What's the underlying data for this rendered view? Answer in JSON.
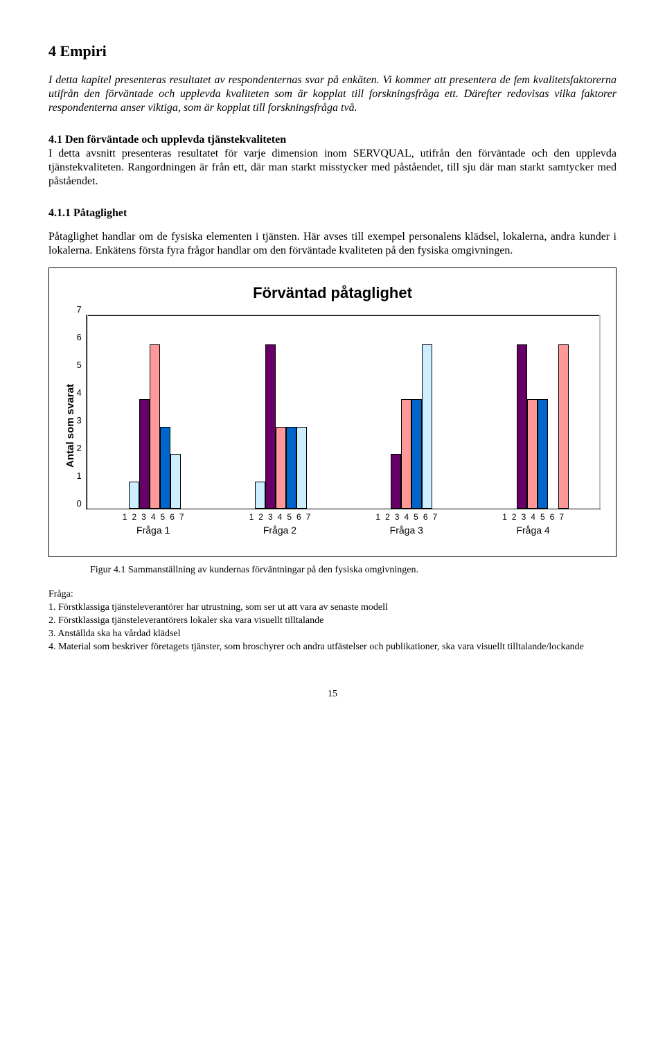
{
  "h1": "4 Empiri",
  "intro": "I detta kapitel presenteras resultatet av respondenternas svar på enkäten. Vi kommer att presentera de fem kvalitetsfaktorerna utifrån den förväntade och upplevda kvaliteten som är kopplat till forskningsfråga ett. Därefter redovisas vilka faktorer respondenterna anser viktiga, som är kopplat till forskningsfråga två.",
  "sec41_title": "4.1 Den förväntade och upplevda tjänstekvaliteten",
  "sec41_body": "I detta avsnitt presenteras resultatet för varje dimension inom SERVQUAL, utifrån den förväntade och den upplevda tjänstekvaliteten. Rangordningen är från ett, där man starkt misstycker med påståendet, till sju där man starkt samtycker med påståendet.",
  "sec411_title": "4.1.1 Påtaglighet",
  "sec411_body": "Påtaglighet handlar om de fysiska elementen i tjänsten. Här avses till exempel personalens klädsel, lokalerna, andra kunder i lokalerna. Enkätens första fyra frågor handlar om den förväntade kvaliteten på den fysiska omgivningen.",
  "chart": {
    "title": "Förväntad påtaglighet",
    "ylabel": "Antal som svarat",
    "ymax": 7,
    "yticks": [
      0,
      1,
      2,
      3,
      4,
      5,
      6,
      7
    ],
    "bar_colors": [
      "#ffffcc",
      "#cceeff",
      "#660066",
      "#ff9999",
      "#0066cc",
      "#cceeff",
      "#ff9999"
    ],
    "groups": [
      {
        "label": "Fråga 1",
        "xnums": [
          "1",
          "2",
          "3",
          "4",
          "5",
          "6",
          "7"
        ],
        "values": [
          0,
          1,
          4,
          6,
          3,
          2,
          0
        ]
      },
      {
        "label": "Fråga 2",
        "xnums": [
          "1",
          "2",
          "3",
          "4",
          "5",
          "6",
          "7"
        ],
        "values": [
          0,
          1,
          6,
          3,
          3,
          3,
          0
        ]
      },
      {
        "label": "Fråga 3",
        "xnums": [
          "1",
          "2",
          "3",
          "4",
          "5",
          "6",
          "7"
        ],
        "values": [
          0,
          0,
          2,
          4,
          4,
          6,
          0
        ]
      },
      {
        "label": "Fråga 4",
        "xnums": [
          "1",
          "2",
          "3",
          "4",
          "5",
          "6",
          "7"
        ],
        "values": [
          0,
          0,
          6,
          4,
          4,
          0,
          6
        ]
      }
    ],
    "plot_bg": "#c0c0c0",
    "inner_bg": "#ffffff",
    "grid_color": "#000000"
  },
  "figcaption": "Figur 4.1 Sammanställning av kundernas förväntningar på den fysiska omgivningen.",
  "questions_label": "Fråga:",
  "questions": [
    "1. Förstklassiga tjänsteleverantörer har utrustning, som ser ut att vara av senaste modell",
    "2. Förstklassiga tjänsteleverantörers lokaler ska vara visuellt tilltalande",
    "3. Anställda ska ha vårdad klädsel",
    "4. Material som beskriver företagets tjänster, som broschyrer och andra utfästelser och publikationer, ska vara visuellt tilltalande/lockande"
  ],
  "page_number": "15"
}
